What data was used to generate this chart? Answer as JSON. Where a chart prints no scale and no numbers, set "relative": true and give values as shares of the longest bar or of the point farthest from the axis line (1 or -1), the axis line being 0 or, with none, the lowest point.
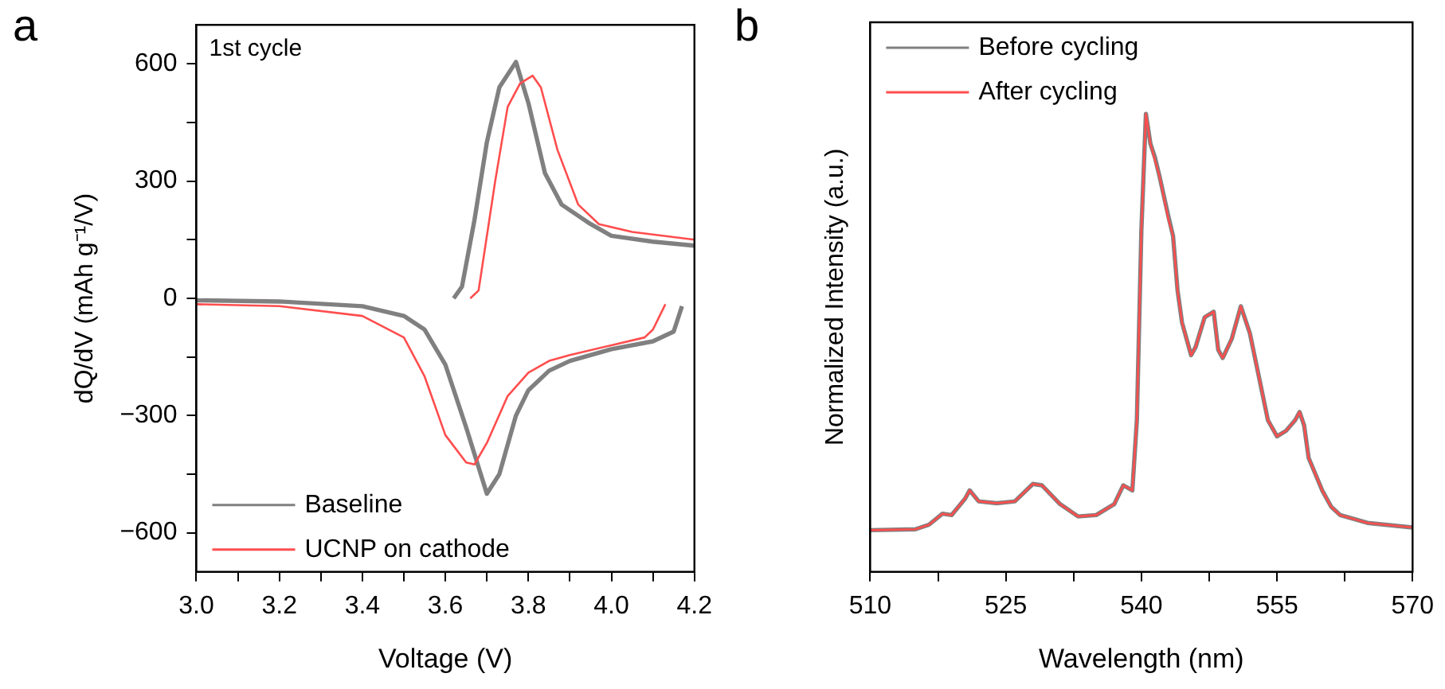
{
  "chart_data": [
    {
      "type": "line",
      "xlabel": "Voltage (V)",
      "ylabel": "dQ/dV (mAh g⁻¹/V)",
      "annotations": [
        "a",
        "1st cycle"
      ],
      "legend": "bottom left",
      "grid": false,
      "marker": "none",
      "line_style": "solid",
      "xlim": [
        3.0,
        4.2
      ],
      "xticks": [
        {
          "value": 3.0,
          "label": "3.0"
        },
        {
          "value": 3.1,
          "label": null
        },
        {
          "value": 3.2,
          "label": "3.2"
        },
        {
          "value": 3.3,
          "label": null
        },
        {
          "value": 3.4,
          "label": "3.4"
        },
        {
          "value": 3.5,
          "label": null
        },
        {
          "value": 3.6,
          "label": "3.6"
        },
        {
          "value": 3.7,
          "label": null
        },
        {
          "value": 3.8,
          "label": "3.8"
        },
        {
          "value": 3.9,
          "label": null
        },
        {
          "value": 4.0,
          "label": "4.0"
        },
        {
          "value": 4.1,
          "label": null
        },
        {
          "value": 4.2,
          "label": "4.2"
        }
      ],
      "ylim": [
        -700,
        700
      ],
      "yticks": [
        -600,
        {
          "value": -450,
          "label": null
        },
        -300,
        {
          "value": -150,
          "label": null
        },
        0,
        {
          "value": 150,
          "label": null
        },
        300,
        {
          "value": 450,
          "label": null
        },
        600
      ],
      "series": [
        {
          "name": "Baseline",
          "color": "#808080",
          "x": [
            3.0,
            3.2,
            3.4,
            3.5,
            3.55,
            3.6,
            3.65,
            3.7,
            3.73,
            3.77,
            3.8,
            3.85,
            3.9,
            4.0,
            4.1,
            4.15,
            4.17,
            null,
            3.62,
            3.64,
            3.67,
            3.7,
            3.73,
            3.77,
            3.8,
            3.84,
            3.88,
            3.95,
            4.0,
            4.1,
            4.2
          ],
          "values": [
            -5,
            -8,
            -20,
            -45,
            -80,
            -170,
            -330,
            -500,
            -450,
            -300,
            -235,
            -185,
            -160,
            -130,
            -110,
            -85,
            -20,
            null,
            0,
            30,
            200,
            400,
            540,
            605,
            500,
            320,
            240,
            190,
            160,
            145,
            135
          ]
        },
        {
          "name": "UCNP on cathode",
          "color": "#ff4d4d",
          "x": [
            3.0,
            3.2,
            3.4,
            3.5,
            3.55,
            3.6,
            3.65,
            3.67,
            3.7,
            3.75,
            3.8,
            3.85,
            3.9,
            4.0,
            4.08,
            4.1,
            4.13,
            null,
            3.66,
            3.68,
            3.72,
            3.75,
            3.78,
            3.81,
            3.83,
            3.87,
            3.92,
            3.97,
            4.05,
            4.2
          ],
          "values": [
            -15,
            -20,
            -45,
            -100,
            -200,
            -350,
            -420,
            -425,
            -370,
            -250,
            -190,
            -160,
            -145,
            -120,
            -100,
            -80,
            -15,
            null,
            0,
            20,
            300,
            490,
            550,
            570,
            540,
            380,
            240,
            190,
            170,
            150
          ]
        }
      ]
    },
    {
      "type": "line",
      "xlabel": "Wavelength (nm)",
      "ylabel": "Normalized Intensity (a.u.)",
      "annotations": [
        "b"
      ],
      "legend": "top left",
      "grid": false,
      "marker": "none",
      "line_style": "solid",
      "relative": true,
      "tick_labels": "x",
      "xlim": [
        510,
        570
      ],
      "xticks": [
        510,
        {
          "value": 517.5,
          "label": null
        },
        525,
        {
          "value": 532.5,
          "label": null
        },
        540,
        {
          "value": 547.5,
          "label": null
        },
        555,
        {
          "value": 562.5,
          "label": null
        },
        570
      ],
      "x": [
        510,
        515,
        516.5,
        518,
        519,
        520.5,
        521,
        522,
        524,
        526,
        528,
        529,
        531,
        533,
        535,
        537,
        538,
        539,
        539.5,
        540,
        540.5,
        541,
        541.5,
        542,
        543,
        543.5,
        544,
        544.5,
        545.5,
        546,
        547,
        548,
        548.5,
        549,
        550,
        551,
        552,
        553,
        554,
        555,
        556,
        557,
        557.5,
        558,
        558.5,
        560,
        561,
        562,
        565,
        570
      ],
      "series": [
        {
          "name": "Before cycling",
          "color": "#808080",
          "values": [
            0.091,
            0.093,
            0.103,
            0.127,
            0.124,
            0.16,
            0.178,
            0.154,
            0.15,
            0.154,
            0.192,
            0.189,
            0.148,
            0.121,
            0.124,
            0.148,
            0.189,
            0.178,
            0.331,
            0.746,
            1,
            0.935,
            0.905,
            0.864,
            0.775,
            0.734,
            0.615,
            0.544,
            0.473,
            0.491,
            0.556,
            0.568,
            0.485,
            0.467,
            0.509,
            0.58,
            0.521,
            0.426,
            0.331,
            0.296,
            0.308,
            0.331,
            0.349,
            0.32,
            0.249,
            0.178,
            0.142,
            0.124,
            0.107,
            0.097
          ]
        },
        {
          "name": "After cycling",
          "color": "#ff4d4d",
          "values": [
            0.091,
            0.093,
            0.103,
            0.127,
            0.124,
            0.16,
            0.178,
            0.154,
            0.15,
            0.154,
            0.192,
            0.189,
            0.148,
            0.121,
            0.124,
            0.148,
            0.189,
            0.178,
            0.331,
            0.746,
            1,
            0.935,
            0.899,
            0.864,
            0.769,
            0.734,
            0.615,
            0.544,
            0.473,
            0.491,
            0.556,
            0.568,
            0.485,
            0.467,
            0.509,
            0.58,
            0.521,
            0.426,
            0.331,
            0.296,
            0.308,
            0.331,
            0.349,
            0.32,
            0.249,
            0.178,
            0.142,
            0.124,
            0.107,
            0.097
          ]
        }
      ]
    }
  ]
}
